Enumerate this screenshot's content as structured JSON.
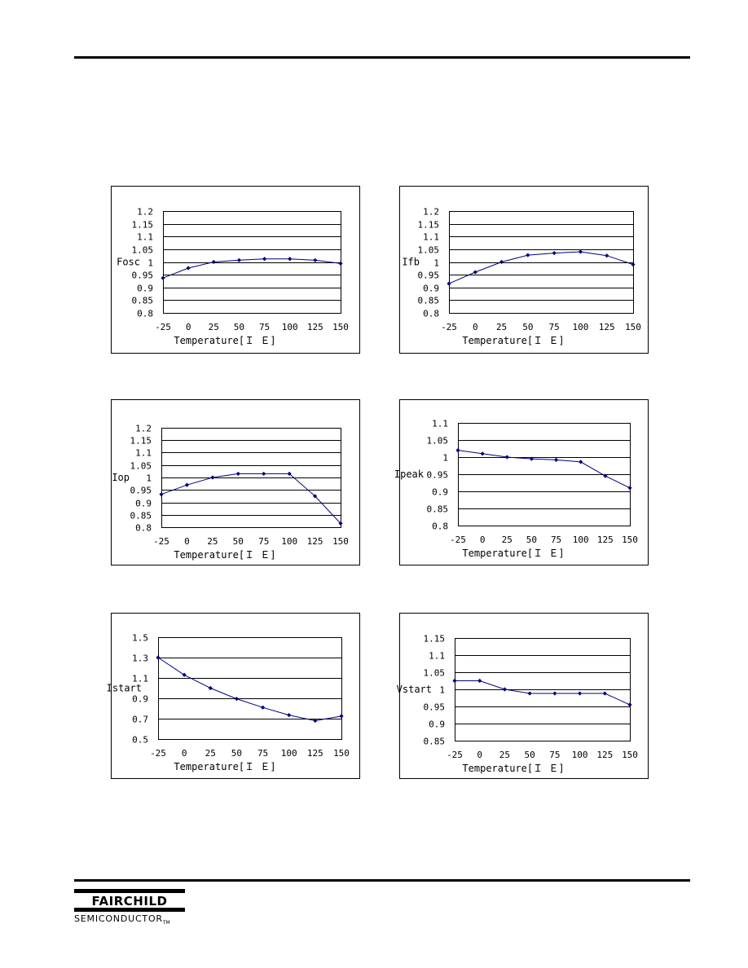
{
  "chart_data": [
    {
      "type": "line",
      "xlabel": "Temperature[Ｉ Ｅ]",
      "ylabel": "Fosc",
      "x": [
        -25,
        0,
        25,
        50,
        75,
        100,
        125,
        150
      ],
      "xticks": [
        "-25",
        "0",
        "25",
        "50",
        "75",
        "100",
        "125",
        "150"
      ],
      "yticks": [
        "1.2",
        "1.15",
        "1.1",
        "1.05",
        "1",
        "0.95",
        "0.9",
        "0.85",
        "0.8"
      ],
      "ylim": [
        0.8,
        1.2
      ],
      "grid": true,
      "series": [
        {
          "values": [
            0.937,
            0.976,
            1.0,
            1.007,
            1.012,
            1.012,
            1.007,
            0.994
          ]
        }
      ]
    },
    {
      "type": "line",
      "xlabel": "Temperature[Ｉ Ｅ]",
      "ylabel": "Ifb",
      "x": [
        -25,
        0,
        25,
        50,
        75,
        100,
        125,
        150
      ],
      "xticks": [
        "-25",
        "0",
        "25",
        "50",
        "75",
        "100",
        "125",
        "150"
      ],
      "yticks": [
        "1.2",
        "1.15",
        "1.1",
        "1.05",
        "1",
        "0.95",
        "0.9",
        "0.85",
        "0.8"
      ],
      "ylim": [
        0.8,
        1.2
      ],
      "grid": true,
      "series": [
        {
          "values": [
            0.915,
            0.96,
            1.0,
            1.027,
            1.035,
            1.04,
            1.025,
            0.99
          ]
        }
      ]
    },
    {
      "type": "line",
      "xlabel": "Temperature[Ｉ Ｅ]",
      "ylabel": "Iop",
      "x": [
        -25,
        0,
        25,
        50,
        75,
        100,
        125,
        150
      ],
      "xticks": [
        "-25",
        "0",
        "25",
        "50",
        "75",
        "100",
        "125",
        "150"
      ],
      "yticks": [
        "1.2",
        "1.15",
        "1.1",
        "1.05",
        "1",
        "0.95",
        "0.9",
        "0.85",
        "0.8"
      ],
      "ylim": [
        0.8,
        1.2
      ],
      "grid": true,
      "series": [
        {
          "values": [
            0.932,
            0.97,
            1.0,
            1.015,
            1.015,
            1.015,
            0.925,
            0.815
          ]
        }
      ]
    },
    {
      "type": "line",
      "xlabel": "Temperature[Ｉ Ｅ]",
      "ylabel": "Ipeak",
      "x": [
        -25,
        0,
        25,
        50,
        75,
        100,
        125,
        150
      ],
      "xticks": [
        "-25",
        "0",
        "25",
        "50",
        "75",
        "100",
        "125",
        "150"
      ],
      "yticks": [
        "1.1",
        "1.05",
        "1",
        "0.95",
        "0.9",
        "0.85",
        "0.8"
      ],
      "ylim": [
        0.8,
        1.1
      ],
      "grid": true,
      "series": [
        {
          "values": [
            1.02,
            1.01,
            1.0,
            0.995,
            0.992,
            0.986,
            0.945,
            0.91
          ]
        }
      ]
    },
    {
      "type": "line",
      "xlabel": "Temperature[Ｉ Ｅ]",
      "ylabel": "Istart",
      "x": [
        -25,
        0,
        25,
        50,
        75,
        100,
        125,
        150
      ],
      "xticks": [
        "-25",
        "0",
        "25",
        "50",
        "75",
        "100",
        "125",
        "150"
      ],
      "yticks": [
        "1.5",
        "1.3",
        "1.1",
        "0.9",
        "0.7",
        "0.5"
      ],
      "ylim": [
        0.5,
        1.5
      ],
      "grid": true,
      "series": [
        {
          "values": [
            1.3,
            1.13,
            1.0,
            0.895,
            0.81,
            0.735,
            0.68,
            0.725
          ]
        }
      ]
    },
    {
      "type": "line",
      "xlabel": "Temperature[Ｉ Ｅ]",
      "ylabel": "Vstart",
      "x": [
        -25,
        0,
        25,
        50,
        75,
        100,
        125,
        150
      ],
      "xticks": [
        "-25",
        "0",
        "25",
        "50",
        "75",
        "100",
        "125",
        "150"
      ],
      "yticks": [
        "1.15",
        "1.1",
        "1.05",
        "1",
        "0.95",
        "0.9",
        "0.85"
      ],
      "ylim": [
        0.85,
        1.15
      ],
      "grid": true,
      "series": [
        {
          "values": [
            1.025,
            1.025,
            1.0,
            0.988,
            0.988,
            0.988,
            0.988,
            0.955
          ]
        }
      ]
    }
  ],
  "footer": {
    "brand": "FAIRCHILD",
    "sub": "SEMICONDUCTOR",
    "tm": "TM"
  },
  "colors": {
    "line": "#00007f",
    "marker": "#00007f",
    "grid": "#000000",
    "frame": "#000000"
  }
}
